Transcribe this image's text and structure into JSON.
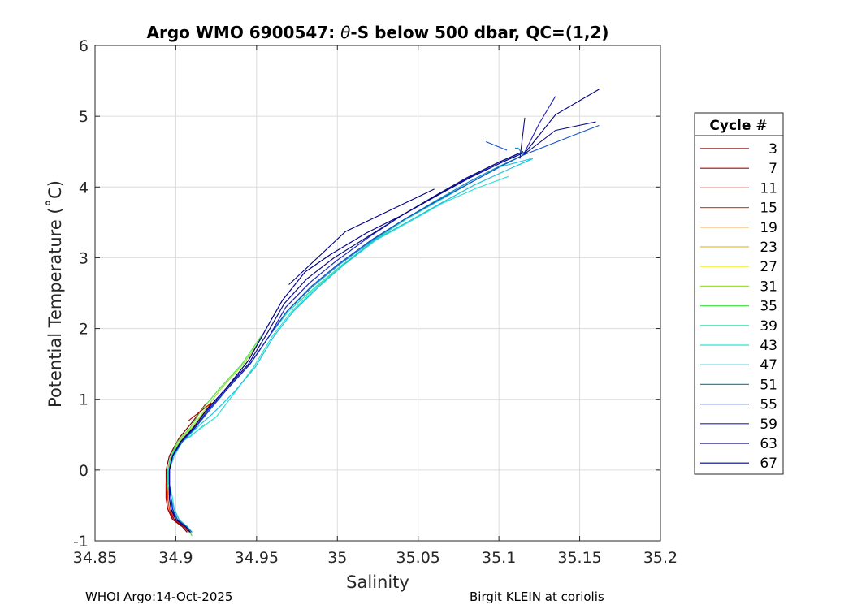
{
  "chart_data": {
    "type": "line",
    "title_main": "Argo WMO 6900547: ",
    "title_theta": "θ",
    "title_rest": "-S below 500 dbar,  QC=(1,2)",
    "xlabel": "Salinity",
    "ylabel": "Potential Temperature (˚C)",
    "xlim": [
      34.85,
      35.2
    ],
    "ylim": [
      -1,
      6
    ],
    "xticks": [
      "34.85",
      "34.9",
      "34.95",
      "35",
      "35.05",
      "35.1",
      "35.15",
      "35.2"
    ],
    "xtick_values": [
      34.85,
      34.9,
      34.95,
      35.0,
      35.05,
      35.1,
      35.15,
      35.2
    ],
    "yticks": [
      "-1",
      "0",
      "1",
      "2",
      "3",
      "4",
      "5",
      "6"
    ],
    "ytick_values": [
      -1,
      0,
      1,
      2,
      3,
      4,
      5,
      6
    ],
    "grid": true,
    "legend_position": "right-outside",
    "legend_title": "Cycle #",
    "legend_entries": [
      {
        "label": "3",
        "color": "#800000"
      },
      {
        "label": "7",
        "color": "#b30000"
      },
      {
        "label": "11",
        "color": "#d40000"
      },
      {
        "label": "15",
        "color": "#e84a0a"
      },
      {
        "label": "19",
        "color": "#f08c1a"
      },
      {
        "label": "23",
        "color": "#e8c020"
      },
      {
        "label": "27",
        "color": "#f0f020"
      },
      {
        "label": "31",
        "color": "#a0e030"
      },
      {
        "label": "35",
        "color": "#50e050"
      },
      {
        "label": "39",
        "color": "#30e0a0"
      },
      {
        "label": "43",
        "color": "#30e0d0"
      },
      {
        "label": "47",
        "color": "#20c0e0"
      },
      {
        "label": "51",
        "color": "#1090c0"
      },
      {
        "label": "55",
        "color": "#1050d0"
      },
      {
        "label": "59",
        "color": "#2020c0"
      },
      {
        "label": "63",
        "color": "#101080"
      },
      {
        "label": "67",
        "color": "#000090"
      }
    ],
    "base_profile": [
      [
        34.909,
        -0.88
      ],
      [
        34.906,
        -0.8
      ],
      [
        34.9,
        -0.7
      ],
      [
        34.897,
        -0.55
      ],
      [
        34.896,
        -0.4
      ],
      [
        34.895,
        -0.2
      ],
      [
        34.895,
        0.0
      ],
      [
        34.897,
        0.2
      ],
      [
        34.902,
        0.4
      ],
      [
        34.91,
        0.6
      ],
      [
        34.918,
        0.85
      ],
      [
        34.93,
        1.15
      ],
      [
        34.945,
        1.5
      ],
      [
        34.958,
        1.9
      ],
      [
        34.97,
        2.25
      ],
      [
        34.985,
        2.6
      ],
      [
        35.0,
        2.9
      ],
      [
        35.02,
        3.25
      ],
      [
        35.04,
        3.55
      ],
      [
        35.06,
        3.82
      ],
      [
        35.08,
        4.08
      ],
      [
        35.1,
        4.3
      ],
      [
        35.115,
        4.45
      ]
    ],
    "series": [
      {
        "name": "3",
        "color": "#800000",
        "ds": [
          -0.002,
          -0.002,
          -0.002,
          -0.002,
          -0.002,
          -0.001,
          -0.001,
          -0.001,
          0.0,
          0.001,
          0.001
        ],
        "dt": [
          0.0,
          0.0,
          0.0,
          0.0,
          0.0,
          0.0,
          0.0,
          0.0,
          0.05,
          0.1,
          0.1
        ],
        "n": 11
      },
      {
        "name": "7",
        "color": "#b30000",
        "ds": [
          -0.001,
          -0.001,
          -0.001,
          -0.002,
          -0.002,
          -0.001,
          0.0,
          0.001,
          0.002,
          0.003,
          0.004
        ],
        "dt": [
          0.0,
          0.0,
          0.0,
          0.0,
          0.0,
          0.0,
          0.0,
          0.0,
          0.0,
          0.05,
          0.1
        ],
        "n": 11
      },
      {
        "name": "11",
        "color": "#d40000",
        "ds": [
          0.0,
          0.0,
          -0.001,
          -0.001,
          -0.001,
          -0.001,
          0.0,
          0.0,
          0.001,
          0.002,
          0.003
        ],
        "dt": [
          0.0,
          0.0,
          0.0,
          0.0,
          0.0,
          0.0,
          0.0,
          0.0,
          0.0,
          0.05,
          0.05
        ],
        "n": 11
      },
      {
        "name": "15",
        "color": "#e84a0a",
        "ds": [
          0.0,
          0.0,
          0.0,
          -0.001,
          -0.001,
          0.0,
          0.0,
          0.001,
          0.001,
          0.002,
          0.003
        ],
        "dt": [
          0.0,
          0.0,
          0.0,
          0.0,
          0.0,
          0.0,
          0.0,
          0.0,
          0.0,
          0.0,
          0.0
        ],
        "n": 11
      },
      {
        "name": "19",
        "color": "#f08c1a",
        "ds": [
          0.0,
          0.0,
          0.0,
          0.0,
          0.0,
          0.0,
          0.0,
          0.001,
          0.001,
          0.001,
          0.002
        ],
        "dt": [
          0.0,
          0.0,
          0.0,
          0.0,
          0.0,
          0.0,
          0.0,
          0.0,
          0.0,
          0.0,
          0.0
        ],
        "n": 11
      },
      {
        "name": "23",
        "color": "#e8c020",
        "ds": [
          0.0,
          0.0,
          0.0,
          0.0,
          0.0,
          0.0,
          0.0,
          0.0,
          0.001,
          0.001,
          0.002
        ],
        "dt": [
          0.0,
          0.0,
          0.0,
          0.0,
          0.0,
          0.0,
          0.0,
          0.0,
          0.0,
          0.0,
          0.0
        ],
        "n": 11
      },
      {
        "name": "27",
        "color": "#f0f020",
        "ds": [
          0.0,
          0.0,
          0.0,
          0.0,
          0.0,
          0.0,
          0.0,
          0.0,
          0.0,
          0.0,
          0.001
        ],
        "dt": [
          0.0,
          0.0,
          0.0,
          0.0,
          0.0,
          0.0,
          0.0,
          0.0,
          0.0,
          0.0,
          0.0
        ],
        "n": 11
      },
      {
        "name": "31",
        "color": "#a0e030",
        "ds": [
          0.001,
          0.001,
          0.001,
          0.0,
          0.0,
          0.0,
          0.0,
          0.0,
          0.0,
          0.0,
          0.0,
          -0.002,
          -0.003,
          -0.004
        ],
        "dt": [
          -0.05,
          0.0,
          0.0,
          0.0,
          0.0,
          0.0,
          0.0,
          0.0,
          0.0,
          0.0,
          0.0,
          0.0,
          0.0,
          0.0
        ],
        "n": 14
      },
      {
        "name": "35",
        "color": "#50e050",
        "ds": [
          0.001,
          0.001,
          0.001,
          0.0,
          0.0,
          0.0,
          0.0,
          0.0,
          -0.001,
          -0.001,
          -0.002,
          -0.003,
          -0.004,
          -0.005
        ],
        "dt": [
          -0.05,
          0.0,
          0.0,
          0.0,
          0.0,
          0.0,
          0.0,
          0.0,
          0.0,
          0.0,
          0.0,
          0.0,
          0.0,
          0.0
        ],
        "n": 14
      },
      {
        "name": "39",
        "color": "#30e0a0",
        "ds": [
          0.001,
          0.001,
          0.001,
          0.001,
          0.001,
          0.0,
          0.0,
          0.0,
          0.001,
          0.002,
          0.003,
          0.002,
          0.001,
          0.0,
          0.0,
          0.002,
          0.003,
          0.003,
          0.003,
          0.004,
          0.004
        ],
        "dt": [
          0.0,
          0.0,
          0.0,
          0.0,
          0.0,
          0.0,
          0.0,
          0.0,
          0.0,
          0.0,
          0.0,
          0.0,
          0.0,
          0.0,
          0.0,
          0.0,
          0.0,
          0.0,
          0.0,
          0.0,
          0.0
        ],
        "n": 21
      },
      {
        "name": "43",
        "color": "#30e0d0",
        "ds": [
          0.001,
          0.001,
          0.002,
          0.002,
          0.002,
          0.001,
          0.001,
          0.001,
          0.002,
          0.006,
          0.007,
          0.005,
          0.003,
          0.002,
          0.002,
          0.003,
          0.004,
          0.004,
          0.004,
          0.005,
          0.006,
          0.006
        ],
        "dt": [
          0.0,
          0.0,
          0.0,
          0.0,
          0.0,
          0.0,
          0.0,
          0.0,
          0.0,
          0.0,
          -0.1,
          -0.1,
          -0.05,
          0.0,
          0.0,
          0.0,
          0.0,
          0.0,
          -0.05,
          -0.05,
          -0.1,
          -0.15
        ],
        "n": 22
      },
      {
        "name": "47",
        "color": "#20c0e0",
        "ds": [
          0.001,
          0.001,
          0.002,
          0.002,
          0.001,
          0.001,
          0.001,
          0.002,
          0.002,
          0.003,
          0.005,
          0.006,
          0.004,
          0.003,
          0.003,
          0.004,
          0.004,
          0.003,
          0.003,
          0.004,
          0.005,
          0.006,
          0.006
        ],
        "dt": [
          0.0,
          0.0,
          0.0,
          0.0,
          0.0,
          0.0,
          0.0,
          0.0,
          0.0,
          0.0,
          -0.05,
          -0.05,
          -0.05,
          0.0,
          0.0,
          0.0,
          0.0,
          0.0,
          -0.05,
          -0.05,
          -0.05,
          -0.05,
          -0.05
        ],
        "n": 23
      },
      {
        "name": "51",
        "color": "#1090c0",
        "ds": [
          0.001,
          0.001,
          0.001,
          0.001,
          0.001,
          0.001,
          0.001,
          0.001,
          0.002,
          0.002,
          0.003,
          0.002,
          0.001,
          0.0,
          -0.001,
          0.0,
          0.001,
          0.002,
          0.002,
          0.002,
          0.002,
          0.001,
          0.0
        ],
        "dt": [
          0.0,
          0.0,
          0.0,
          0.0,
          0.0,
          0.0,
          0.0,
          0.0,
          0.0,
          0.0,
          0.0,
          0.0,
          0.0,
          0.0,
          0.0,
          0.0,
          0.0,
          0.0,
          0.0,
          0.0,
          0.0,
          0.0,
          0.0
        ],
        "n": 23
      },
      {
        "name": "55",
        "color": "#1050d0",
        "ds": [
          0.0,
          0.0,
          0.001,
          0.001,
          0.001,
          0.001,
          0.001,
          0.001,
          0.002,
          0.002,
          0.003,
          0.002,
          0.001,
          0.0,
          -0.001,
          -0.001,
          0.0,
          0.001,
          0.002,
          0.003,
          0.004,
          0.002,
          0.0
        ],
        "dt": [
          0.0,
          0.0,
          0.0,
          0.0,
          0.0,
          0.0,
          0.0,
          0.0,
          0.0,
          0.0,
          0.0,
          0.0,
          0.0,
          0.0,
          0.0,
          0.0,
          0.0,
          0.0,
          0.0,
          0.0,
          0.0,
          0.0,
          0.0
        ],
        "n": 23
      },
      {
        "name": "59",
        "color": "#2020c0",
        "ds": [
          0.0,
          0.0,
          0.0,
          0.001,
          0.001,
          0.001,
          0.001,
          0.001,
          0.001,
          0.002,
          0.002,
          0.002,
          0.001,
          0.0,
          -0.002,
          -0.002,
          -0.001,
          0.0,
          0.0,
          0.001,
          0.001,
          0.0,
          0.0
        ],
        "dt": [
          0.0,
          0.0,
          0.0,
          0.0,
          0.0,
          0.0,
          0.0,
          0.0,
          0.0,
          0.0,
          0.0,
          0.0,
          0.0,
          0.0,
          0.05,
          0.05,
          0.05,
          0.05,
          0.05,
          0.05,
          0.05,
          0.05,
          0.05
        ],
        "n": 23
      },
      {
        "name": "63",
        "color": "#101080",
        "ds": [
          0.0,
          0.0,
          0.0,
          0.0,
          0.001,
          0.001,
          0.001,
          0.001,
          0.001,
          0.001,
          0.001,
          0.001,
          0.0,
          -0.001,
          -0.003,
          -0.004,
          -0.002,
          -0.001,
          0.0,
          0.0,
          0.0,
          0.0,
          0.0
        ],
        "dt": [
          0.0,
          0.0,
          0.0,
          0.0,
          0.0,
          0.0,
          0.0,
          0.0,
          0.0,
          0.0,
          0.0,
          0.0,
          0.0,
          0.05,
          0.1,
          0.1,
          0.1,
          0.05,
          0.05,
          0.05,
          0.05,
          0.05,
          0.05
        ],
        "n": 23
      },
      {
        "name": "67",
        "color": "#000090",
        "ds": [
          0.0,
          0.0,
          0.0,
          0.0,
          0.0,
          0.001,
          0.001,
          0.001,
          0.001,
          0.001,
          0.001,
          0.001,
          0.0,
          -0.002,
          -0.004,
          -0.005,
          -0.004,
          -0.002,
          0.0,
          0.001,
          0.002,
          0.002,
          0.002
        ],
        "dt": [
          0.0,
          0.0,
          0.0,
          0.0,
          0.0,
          0.0,
          0.0,
          0.0,
          0.0,
          0.0,
          0.0,
          0.0,
          0.05,
          0.1,
          0.15,
          0.2,
          0.15,
          0.1,
          0.05,
          0.05,
          0.05,
          0.05,
          0.05
        ],
        "n": 23
      }
    ],
    "extra_segments": [
      {
        "name": "67",
        "color": "#000080",
        "points": [
          [
            34.97,
            2.62
          ],
          [
            35.005,
            3.37
          ],
          [
            35.06,
            3.97
          ]
        ]
      },
      {
        "name": "67",
        "color": "#000080",
        "points": [
          [
            35.115,
            4.45
          ],
          [
            35.135,
            5.02
          ],
          [
            35.162,
            5.38
          ]
        ]
      },
      {
        "name": "63",
        "color": "#101080",
        "points": [
          [
            35.115,
            4.45
          ],
          [
            35.135,
            4.8
          ],
          [
            35.16,
            4.92
          ]
        ]
      },
      {
        "name": "59",
        "color": "#2020c0",
        "points": [
          [
            35.115,
            4.45
          ],
          [
            35.125,
            4.9
          ],
          [
            35.135,
            5.28
          ]
        ]
      },
      {
        "name": "55",
        "color": "#1050d0",
        "points": [
          [
            35.115,
            4.45
          ],
          [
            35.145,
            4.72
          ],
          [
            35.162,
            4.87
          ]
        ]
      },
      {
        "name": "51",
        "color": "#1090c0",
        "points": [
          [
            35.115,
            4.45
          ],
          [
            35.112,
            4.55
          ],
          [
            35.11,
            4.55
          ]
        ]
      },
      {
        "name": "63",
        "color": "#101080",
        "points": [
          [
            35.113,
            4.4
          ],
          [
            35.116,
            4.98
          ]
        ]
      },
      {
        "name": "55",
        "color": "#1050d0",
        "points": [
          [
            35.092,
            4.64
          ],
          [
            35.105,
            4.52
          ]
        ]
      },
      {
        "name": "47",
        "color": "#20c0e0",
        "points": [
          [
            35.1,
            4.28
          ],
          [
            35.12,
            4.4
          ]
        ]
      },
      {
        "name": "43",
        "color": "#30e0d0",
        "points": [
          [
            34.908,
            0.45
          ],
          [
            34.918,
            0.65
          ]
        ]
      },
      {
        "name": "7",
        "color": "#b30000",
        "points": [
          [
            34.908,
            0.7
          ],
          [
            34.922,
            0.95
          ]
        ]
      }
    ]
  },
  "footer": {
    "left": "WHOI Argo:14-Oct-2025",
    "right": "Birgit KLEIN at coriolis"
  }
}
